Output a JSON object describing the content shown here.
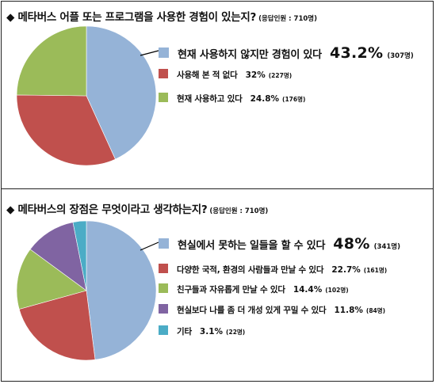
{
  "chart_data": [
    {
      "type": "pie",
      "title": "◆ 메타버스 어플 또는 프로그램을 사용한 경험이 있는지?",
      "note": "(응답인원 : 710명)",
      "slices": [
        {
          "label": "현재 사용하지 않지만 경험이 있다",
          "value": 43.2,
          "value_text": "43.2%",
          "count_text": "(307명)",
          "color": "#95b3d7"
        },
        {
          "label": "사용해 본 적 없다",
          "value": 32,
          "value_text": "32%",
          "count_text": "(227명)",
          "color": "#c0504d"
        },
        {
          "label": "현재 사용하고 있다",
          "value": 24.8,
          "value_text": "24.8%",
          "count_text": "(176명)",
          "color": "#9bbb59"
        }
      ]
    },
    {
      "type": "pie",
      "title": "◆ 메타버스의 장점은 무엇이라고 생각하는지?",
      "note": "(응답인원 : 710명)",
      "slices": [
        {
          "label": "현실에서 못하는 일들을 할 수 있다",
          "value": 48,
          "value_text": "48%",
          "count_text": "(341명)",
          "color": "#95b3d7"
        },
        {
          "label": "다양한 국적, 환경의 사람들과 만날 수 있다",
          "value": 22.7,
          "value_text": "22.7%",
          "count_text": "(161명)",
          "color": "#c0504d"
        },
        {
          "label": "친구들과 자유롭게 만날 수 있다",
          "value": 14.4,
          "value_text": "14.4%",
          "count_text": "(102명)",
          "color": "#9bbb59"
        },
        {
          "label": "현실보다 나를 좀 더 개성 있게 꾸밀 수 있다",
          "value": 11.8,
          "value_text": "11.8%",
          "count_text": "(84명)",
          "color": "#8064a2"
        },
        {
          "label": "기타",
          "value": 3.1,
          "value_text": "3.1%",
          "count_text": "(22명)",
          "color": "#4bacc6"
        }
      ]
    }
  ]
}
